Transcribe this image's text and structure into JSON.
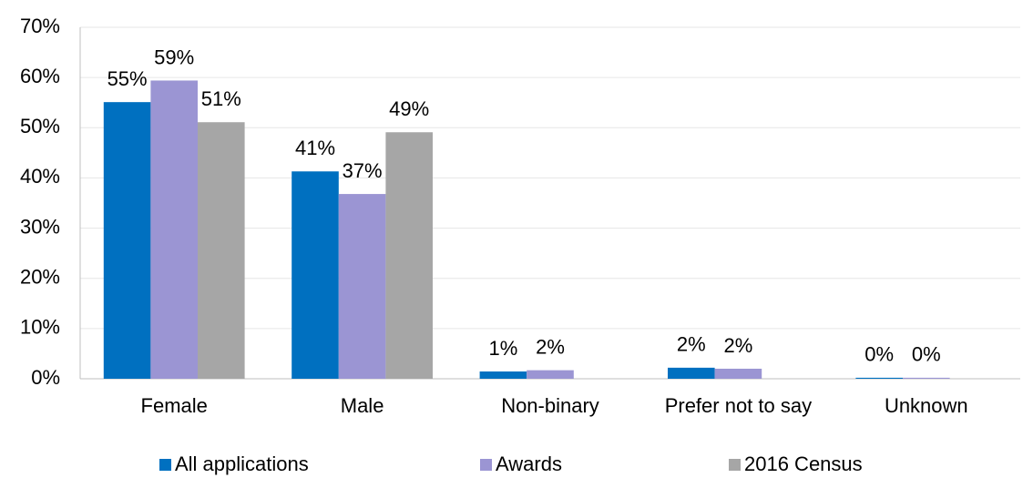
{
  "chart_data": {
    "type": "bar",
    "categories": [
      "Female",
      "Male",
      "Non-binary",
      "Prefer not to say",
      "Unknown"
    ],
    "series": [
      {
        "name": "All applications",
        "color": "#0070c0",
        "values": [
          55.1,
          41.3,
          1.45,
          2.2,
          0.2
        ],
        "value_labels": [
          "55%",
          "41%",
          "1%",
          "2%",
          "0%"
        ]
      },
      {
        "name": "Awards",
        "color": "#9b95d3",
        "values": [
          59.4,
          36.8,
          1.7,
          2.0,
          0.2
        ],
        "value_labels": [
          "59%",
          "37%",
          "2%",
          "2%",
          "0%"
        ]
      },
      {
        "name": "2016 Census",
        "color": "#a6a6a6",
        "values": [
          51.1,
          49.1,
          null,
          null,
          null
        ],
        "value_labels": [
          "51%",
          "49%",
          null,
          null,
          null
        ]
      }
    ],
    "ylim": [
      0,
      70
    ],
    "yticks": [
      {
        "value": 0,
        "label": "0%"
      },
      {
        "value": 10,
        "label": "10%"
      },
      {
        "value": 20,
        "label": "20%"
      },
      {
        "value": 30,
        "label": "30%"
      },
      {
        "value": 40,
        "label": "40%"
      },
      {
        "value": 50,
        "label": "50%"
      },
      {
        "value": 60,
        "label": "60%"
      },
      {
        "value": 70,
        "label": "70%"
      }
    ],
    "grid": true,
    "legend": "bottom"
  }
}
